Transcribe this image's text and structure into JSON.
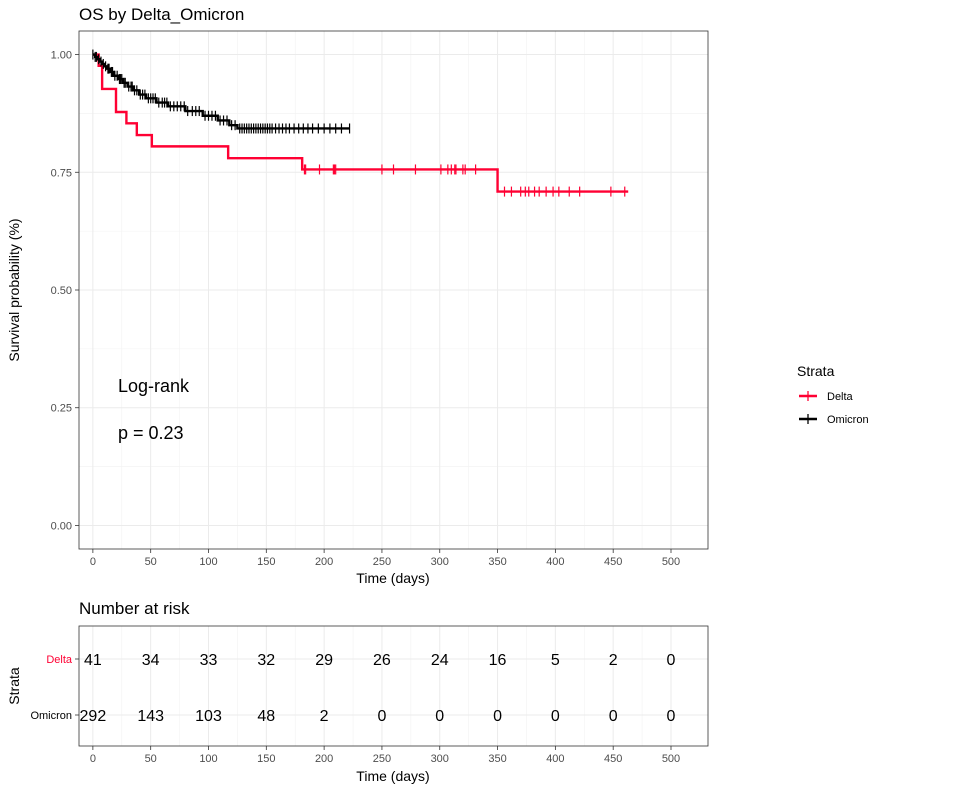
{
  "chart_data": [
    {
      "type": "line",
      "title": "OS by Delta_Omicron",
      "xlabel": "Time (days)",
      "ylabel": "Survival probability (%)",
      "xlim": [
        -12,
        532
      ],
      "ylim": [
        -0.05,
        1.05
      ],
      "x_ticks": [
        0,
        50,
        100,
        150,
        200,
        250,
        300,
        350,
        400,
        450,
        500
      ],
      "x_tick_labels": [
        "0",
        "50",
        "100",
        "150",
        "200",
        "250",
        "300",
        "350",
        "400",
        "450",
        "500"
      ],
      "y_ticks": [
        0,
        0.25,
        0.5,
        0.75,
        1.0
      ],
      "y_tick_labels": [
        "0.00",
        "0.25",
        "0.50",
        "0.75",
        "1.00"
      ],
      "grid": true,
      "legend": {
        "title": "Strata",
        "placement": "right",
        "entries": [
          "Delta",
          "Omicron"
        ]
      },
      "annotations": [
        "Log-rank",
        "p = 0.23"
      ],
      "series": [
        {
          "name": "Delta",
          "color": "#ff0033",
          "steps": [
            [
              0,
              1.0
            ],
            [
              5,
              1.0
            ],
            [
              5,
              0.976
            ],
            [
              8,
              0.976
            ],
            [
              8,
              0.927
            ],
            [
              20,
              0.927
            ],
            [
              20,
              0.878
            ],
            [
              29,
              0.878
            ],
            [
              29,
              0.854
            ],
            [
              38,
              0.854
            ],
            [
              38,
              0.829
            ],
            [
              51,
              0.829
            ],
            [
              51,
              0.805
            ],
            [
              117,
              0.805
            ],
            [
              117,
              0.78
            ],
            [
              181,
              0.78
            ],
            [
              181,
              0.756
            ],
            [
              350,
              0.756
            ],
            [
              350,
              0.709
            ],
            [
              463,
              0.709
            ]
          ],
          "censor_x": [
            183,
            184,
            196,
            208,
            209,
            210,
            250,
            260,
            279,
            301,
            307,
            310,
            313,
            314,
            320,
            322,
            331,
            356,
            362,
            370,
            374,
            377,
            382,
            386,
            392,
            398,
            403,
            412,
            421,
            448,
            460
          ]
        },
        {
          "name": "Omicron",
          "color": "#000000",
          "steps": [
            [
              0,
              1.0
            ],
            [
              2,
              1.0
            ],
            [
              2,
              0.995
            ],
            [
              4,
              0.995
            ],
            [
              4,
              0.99
            ],
            [
              6,
              0.99
            ],
            [
              6,
              0.985
            ],
            [
              8,
              0.985
            ],
            [
              8,
              0.98
            ],
            [
              10,
              0.98
            ],
            [
              10,
              0.975
            ],
            [
              12,
              0.975
            ],
            [
              12,
              0.97
            ],
            [
              15,
              0.97
            ],
            [
              15,
              0.963
            ],
            [
              18,
              0.963
            ],
            [
              18,
              0.955
            ],
            [
              22,
              0.955
            ],
            [
              22,
              0.948
            ],
            [
              26,
              0.948
            ],
            [
              26,
              0.94
            ],
            [
              30,
              0.94
            ],
            [
              30,
              0.932
            ],
            [
              35,
              0.932
            ],
            [
              35,
              0.924
            ],
            [
              40,
              0.924
            ],
            [
              40,
              0.915
            ],
            [
              46,
              0.915
            ],
            [
              46,
              0.907
            ],
            [
              55,
              0.907
            ],
            [
              55,
              0.898
            ],
            [
              65,
              0.898
            ],
            [
              65,
              0.89
            ],
            [
              80,
              0.89
            ],
            [
              80,
              0.88
            ],
            [
              95,
              0.88
            ],
            [
              95,
              0.87
            ],
            [
              108,
              0.87
            ],
            [
              108,
              0.86
            ],
            [
              118,
              0.86
            ],
            [
              118,
              0.85
            ],
            [
              125,
              0.85
            ],
            [
              125,
              0.843
            ],
            [
              222,
              0.843
            ]
          ],
          "censor_x": [
            0,
            2,
            3,
            5,
            7,
            9,
            11,
            13,
            14,
            16,
            17,
            19,
            21,
            23,
            24,
            25,
            27,
            28,
            31,
            33,
            34,
            36,
            38,
            41,
            43,
            45,
            48,
            50,
            52,
            54,
            57,
            60,
            62,
            64,
            67,
            70,
            73,
            76,
            79,
            82,
            86,
            89,
            92,
            97,
            100,
            103,
            106,
            110,
            113,
            116,
            120,
            123,
            127,
            129,
            131,
            133,
            135,
            137,
            139,
            141,
            143,
            145,
            147,
            149,
            151,
            153,
            155,
            158,
            161,
            164,
            167,
            170,
            174,
            178,
            182,
            186,
            190,
            195,
            200,
            205,
            210,
            215,
            222
          ]
        }
      ]
    },
    {
      "type": "table",
      "title": "Number at risk",
      "xlabel": "Time (days)",
      "ylabel": "Strata",
      "x_ticks": [
        0,
        50,
        100,
        150,
        200,
        250,
        300,
        350,
        400,
        450,
        500
      ],
      "x_tick_labels": [
        "0",
        "50",
        "100",
        "150",
        "200",
        "250",
        "300",
        "350",
        "400",
        "450",
        "500"
      ],
      "rows": [
        {
          "name": "Delta",
          "color": "#ff0033",
          "values": [
            41,
            34,
            33,
            32,
            29,
            26,
            24,
            16,
            5,
            2,
            0
          ]
        },
        {
          "name": "Omicron",
          "color": "#000000",
          "values": [
            292,
            143,
            103,
            48,
            2,
            0,
            0,
            0,
            0,
            0,
            0
          ]
        }
      ]
    }
  ]
}
